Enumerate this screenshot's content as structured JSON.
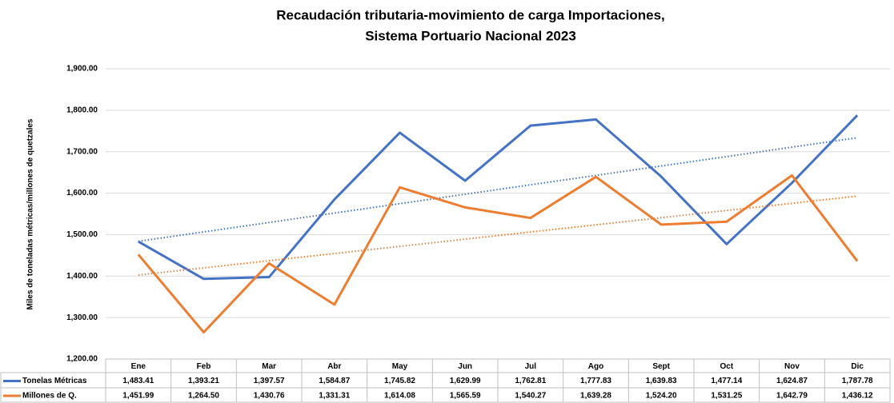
{
  "chart_data": {
    "type": "line",
    "title": [
      "Recaudación tributaria-movimiento de carga Importaciones,",
      "Sistema Portuario Nacional 2023"
    ],
    "y_label": "Miles de toneladas métricas/millones de quetzales",
    "categories": [
      "Ene",
      "Feb",
      "Mar",
      "Abr",
      "May",
      "Jun",
      "Jul",
      "Ago",
      "Sept",
      "Oct",
      "Nov",
      "Dic"
    ],
    "series": [
      {
        "name": "Tonelas Métricas",
        "color": "#4472c4",
        "values": [
          1483.41,
          1393.21,
          1397.57,
          1584.87,
          1745.82,
          1629.99,
          1762.81,
          1777.83,
          1639.83,
          1477.14,
          1624.87,
          1787.78
        ],
        "value_labels": [
          "1,483.41",
          "1,393.21",
          "1,397.57",
          "1,584.87",
          "1,745.82",
          "1,629.99",
          "1,762.81",
          "1,777.83",
          "1,639.83",
          "1,477.14",
          "1,624.87",
          "1,787.78"
        ]
      },
      {
        "name": "Millones de Q.",
        "color": "#ed7d31",
        "values": [
          1451.99,
          1264.5,
          1430.76,
          1331.31,
          1614.08,
          1565.59,
          1540.27,
          1639.28,
          1524.2,
          1531.25,
          1642.79,
          1436.12
        ],
        "value_labels": [
          "1,451.99",
          "1,264.50",
          "1,430.76",
          "1,331.31",
          "1,614.08",
          "1,565.59",
          "1,540.27",
          "1,639.28",
          "1,524.20",
          "1,531.25",
          "1,642.79",
          "1,436.12"
        ]
      }
    ],
    "trendline": true,
    "ylim": [
      1200,
      1900
    ],
    "yticks": [
      {
        "value": 1200,
        "label": "1,200.00"
      },
      {
        "value": 1300,
        "label": "1,300.00"
      },
      {
        "value": 1400,
        "label": "1,400.00"
      },
      {
        "value": 1500,
        "label": "1,500.00"
      },
      {
        "value": 1600,
        "label": "1,600.00"
      },
      {
        "value": 1700,
        "label": "1,700.00"
      },
      {
        "value": 1800,
        "label": "1,800.00"
      },
      {
        "value": 1900,
        "label": "1,900.00"
      }
    ],
    "grid": true
  }
}
